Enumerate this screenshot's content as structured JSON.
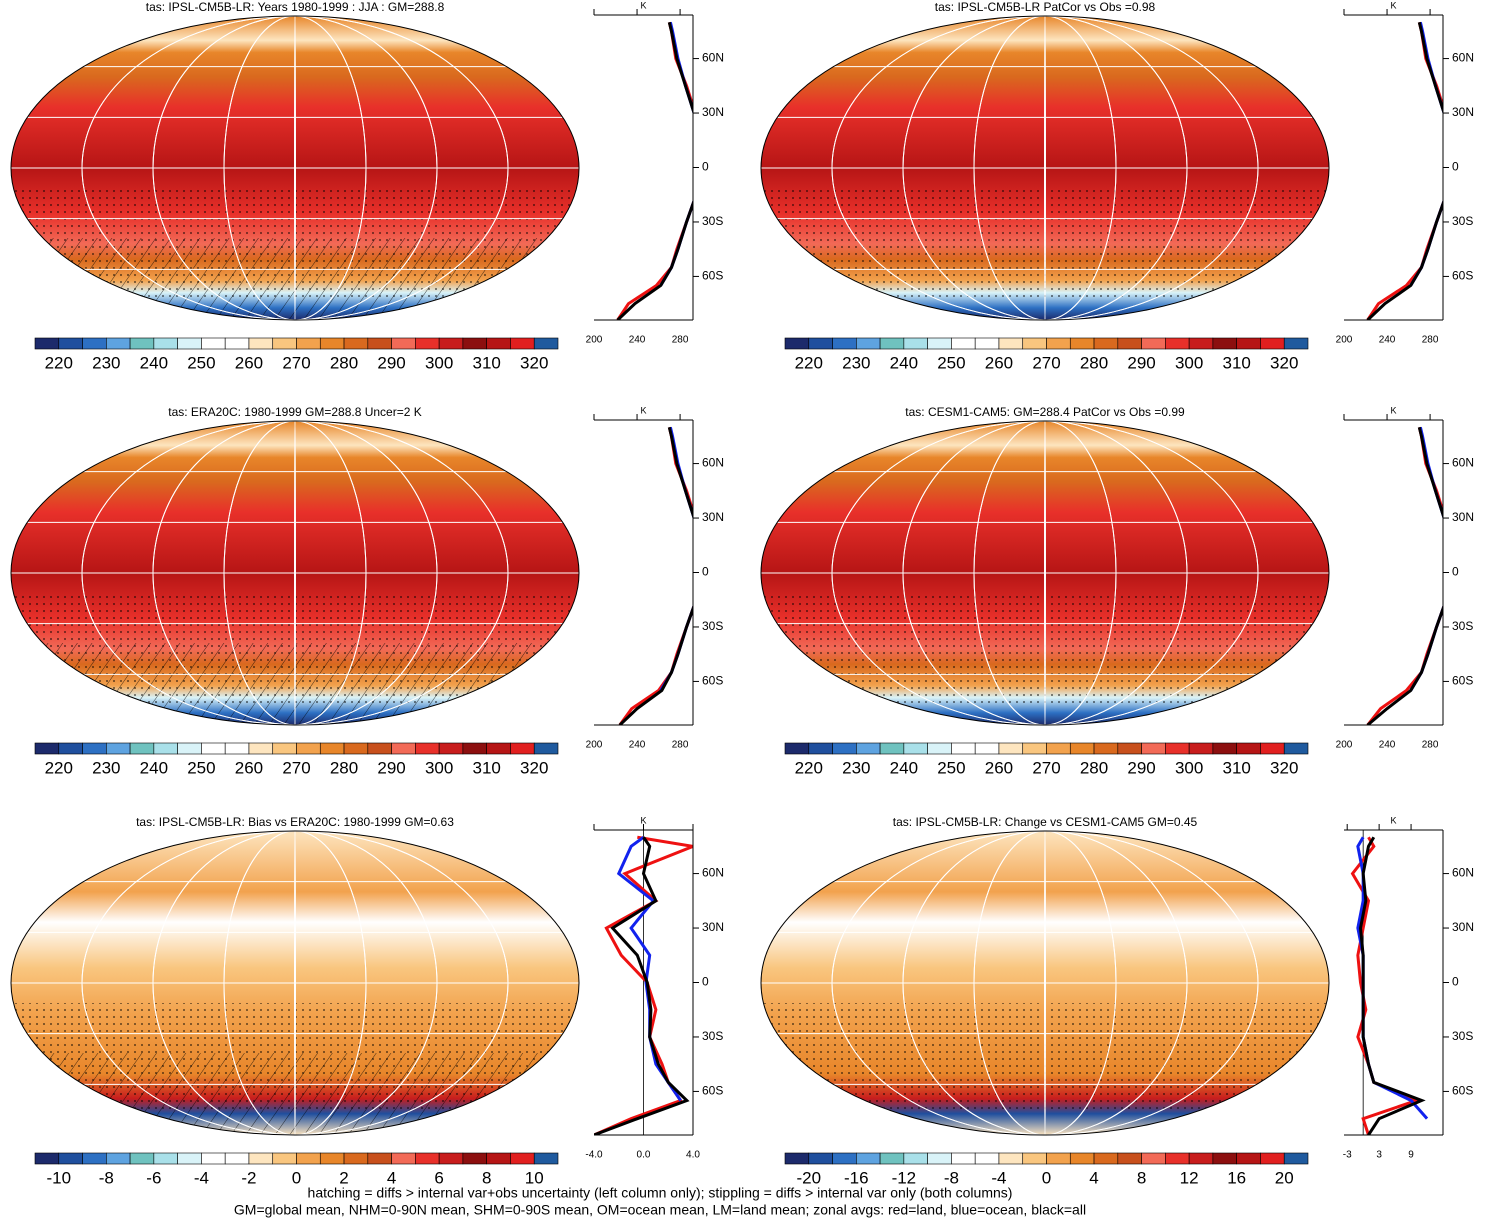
{
  "chart_data": [
    {
      "type": "map",
      "title": "tas: IPSL-CM5B-LR: Years 1980-1999 : JJA : GM=288.8",
      "colorbar": {
        "clim": [
          215,
          325
        ],
        "ticks": [
          220,
          230,
          240,
          250,
          260,
          270,
          280,
          290,
          300,
          310,
          320
        ]
      },
      "profile": {
        "type": "line",
        "units": "K",
        "xlim": [
          200,
          292
        ],
        "xticks": [
          200,
          240,
          280
        ],
        "ylim": [
          -84,
          84
        ],
        "yticks": [
          {
            "value": 60,
            "label": "60N"
          },
          {
            "value": 30,
            "label": "30N"
          },
          0,
          {
            "value": -30,
            "label": "30S"
          },
          {
            "value": -60,
            "label": "60S"
          }
        ],
        "y": [
          -84,
          -75,
          -65,
          -55,
          -45,
          -30,
          -15,
          0,
          15,
          30,
          45,
          60,
          75,
          80
        ],
        "series": [
          {
            "name": "land",
            "color": "#ee1111",
            "values": [
              222,
              232,
              258,
              272,
              277,
              286,
              295,
              299,
              297,
              294,
              286,
              276,
              272,
              270
            ]
          },
          {
            "name": "ocean",
            "color": "#1122ee",
            "values": [
              null,
              null,
              262,
              272,
              278,
              286,
              295,
              300,
              298,
              293,
              285,
              278,
              273,
              271
            ]
          },
          {
            "name": "all",
            "color": "#000000",
            "values": [
              222,
              238,
              262,
              272,
              278,
              286,
              295,
              300,
              298,
              293,
              285,
              277,
              272,
              270
            ]
          }
        ]
      }
    },
    {
      "type": "map",
      "title": "tas: IPSL-CM5B-LR PatCor vs Obs =0.98",
      "colorbar": {
        "clim": [
          215,
          325
        ],
        "ticks": [
          220,
          230,
          240,
          250,
          260,
          270,
          280,
          290,
          300,
          310,
          320
        ]
      },
      "profile": {
        "type": "line",
        "units": "K",
        "xlim": [
          200,
          292
        ],
        "xticks": [
          200,
          240,
          280
        ],
        "ylim": [
          -84,
          84
        ],
        "yticks": [
          {
            "value": 60,
            "label": "60N"
          },
          {
            "value": 30,
            "label": "30N"
          },
          0,
          {
            "value": -30,
            "label": "30S"
          },
          {
            "value": -60,
            "label": "60S"
          }
        ],
        "y": [
          -84,
          -75,
          -65,
          -55,
          -45,
          -30,
          -15,
          0,
          15,
          30,
          45,
          60,
          75,
          80
        ],
        "series": [
          {
            "name": "land",
            "color": "#ee1111",
            "values": [
              222,
              232,
              258,
              272,
              277,
              286,
              295,
              299,
              297,
              294,
              286,
              276,
              272,
              270
            ]
          },
          {
            "name": "ocean",
            "color": "#1122ee",
            "values": [
              null,
              null,
              262,
              272,
              278,
              286,
              295,
              300,
              298,
              293,
              285,
              278,
              273,
              271
            ]
          },
          {
            "name": "all",
            "color": "#000000",
            "values": [
              222,
              238,
              262,
              272,
              278,
              286,
              295,
              300,
              298,
              293,
              285,
              277,
              272,
              270
            ]
          }
        ]
      }
    },
    {
      "type": "map",
      "title": "tas: ERA20C: 1980-1999 GM=288.8 Uncer=2 K",
      "colorbar": {
        "clim": [
          215,
          325
        ],
        "ticks": [
          220,
          230,
          240,
          250,
          260,
          270,
          280,
          290,
          300,
          310,
          320
        ]
      },
      "profile": {
        "type": "line",
        "units": "K",
        "xlim": [
          200,
          292
        ],
        "xticks": [
          200,
          240,
          280
        ],
        "ylim": [
          -84,
          84
        ],
        "yticks": [
          {
            "value": 60,
            "label": "60N"
          },
          {
            "value": 30,
            "label": "30N"
          },
          0,
          {
            "value": -30,
            "label": "30S"
          },
          {
            "value": -60,
            "label": "60S"
          }
        ],
        "y": [
          -84,
          -75,
          -65,
          -55,
          -45,
          -30,
          -15,
          0,
          15,
          30,
          45,
          60,
          75,
          80
        ],
        "series": [
          {
            "name": "land",
            "color": "#ee1111",
            "values": [
              224,
              235,
              260,
              272,
              277,
              286,
              295,
              299,
              297,
              294,
              286,
              276,
              272,
              270
            ]
          },
          {
            "name": "ocean",
            "color": "#1122ee",
            "values": [
              null,
              null,
              262,
              272,
              278,
              286,
              295,
              300,
              298,
              293,
              285,
              278,
              273,
              271
            ]
          },
          {
            "name": "all",
            "color": "#000000",
            "values": [
              224,
              240,
              263,
              272,
              278,
              286,
              295,
              300,
              298,
              293,
              285,
              277,
              272,
              270
            ]
          }
        ]
      }
    },
    {
      "type": "map",
      "title": "tas: CESM1-CAM5: GM=288.4 PatCor vs Obs =0.99",
      "colorbar": {
        "clim": [
          215,
          325
        ],
        "ticks": [
          220,
          230,
          240,
          250,
          260,
          270,
          280,
          290,
          300,
          310,
          320
        ]
      },
      "profile": {
        "type": "line",
        "units": "K",
        "xlim": [
          200,
          292
        ],
        "xticks": [
          200,
          240,
          280
        ],
        "ylim": [
          -84,
          84
        ],
        "yticks": [
          {
            "value": 60,
            "label": "60N"
          },
          {
            "value": 30,
            "label": "30N"
          },
          0,
          {
            "value": -30,
            "label": "30S"
          },
          {
            "value": -60,
            "label": "60S"
          }
        ],
        "y": [
          -84,
          -75,
          -65,
          -55,
          -45,
          -30,
          -15,
          0,
          15,
          30,
          45,
          60,
          75,
          80
        ],
        "series": [
          {
            "name": "land",
            "color": "#ee1111",
            "values": [
              222,
              234,
              258,
              272,
              277,
              286,
              295,
              299,
              297,
              294,
              286,
              276,
              272,
              270
            ]
          },
          {
            "name": "ocean",
            "color": "#1122ee",
            "values": [
              null,
              null,
              262,
              272,
              278,
              286,
              295,
              300,
              298,
              293,
              285,
              278,
              273,
              271
            ]
          },
          {
            "name": "all",
            "color": "#000000",
            "values": [
              222,
              240,
              262,
              272,
              278,
              286,
              295,
              300,
              298,
              293,
              285,
              277,
              272,
              270
            ]
          }
        ]
      }
    },
    {
      "type": "map",
      "title": "tas: IPSL-CM5B-LR: Bias vs ERA20C: 1980-1999 GM=0.63",
      "colorbar": {
        "clim": [
          -11,
          11
        ],
        "ticks": [
          -10,
          -8,
          -6,
          -4,
          -2,
          0,
          2,
          4,
          6,
          8,
          10
        ]
      },
      "profile": {
        "type": "line",
        "units": "K",
        "xlim": [
          -4,
          4
        ],
        "xticks": [
          {
            "value": -4,
            "label": "-4.0"
          },
          {
            "value": 0,
            "label": "0.0"
          },
          {
            "value": 4,
            "label": "4.0"
          }
        ],
        "ylim": [
          -84,
          84
        ],
        "yticks": [
          {
            "value": 60,
            "label": "60N"
          },
          {
            "value": 30,
            "label": "30N"
          },
          0,
          {
            "value": -30,
            "label": "30S"
          },
          {
            "value": -60,
            "label": "60S"
          }
        ],
        "y": [
          -84,
          -75,
          -65,
          -55,
          -45,
          -30,
          -15,
          0,
          15,
          30,
          45,
          60,
          75,
          80
        ],
        "series": [
          {
            "name": "land",
            "color": "#ee1111",
            "values": [
              -4,
              -1,
              3,
              2,
              1.5,
              0.5,
              1,
              0.3,
              -1.8,
              -3,
              1,
              -1.5,
              4,
              -0.5
            ]
          },
          {
            "name": "ocean",
            "color": "#1122ee",
            "values": [
              null,
              null,
              3,
              2,
              1,
              0.5,
              0.5,
              0.2,
              0.5,
              -1,
              0.8,
              -2,
              -1,
              0
            ]
          },
          {
            "name": "all",
            "color": "#000000",
            "values": [
              -4,
              -0.5,
              3.5,
              2,
              1.2,
              0.5,
              0.6,
              0.3,
              -0.5,
              -2.5,
              1,
              0,
              0.5,
              0
            ]
          }
        ]
      }
    },
    {
      "type": "map",
      "title": "tas: IPSL-CM5B-LR: Change vs CESM1-CAM5 GM=0.45",
      "colorbar": {
        "clim": [
          -22,
          22
        ],
        "ticks": [
          -20,
          -16,
          -12,
          -8,
          -4,
          0,
          4,
          8,
          12,
          16,
          20
        ]
      },
      "profile": {
        "type": "line",
        "units": "K",
        "xlim": [
          -3.6,
          15
        ],
        "xticks": [
          -3,
          3,
          9
        ],
        "ylim": [
          -84,
          84
        ],
        "yticks": [
          {
            "value": 60,
            "label": "60N"
          },
          {
            "value": 30,
            "label": "30N"
          },
          0,
          {
            "value": -30,
            "label": "30S"
          },
          {
            "value": -60,
            "label": "60S"
          }
        ],
        "y": [
          -84,
          -75,
          -65,
          -55,
          -45,
          -30,
          -15,
          0,
          15,
          30,
          45,
          60,
          75,
          80
        ],
        "series": [
          {
            "name": "land",
            "color": "#ee1111",
            "values": [
              1,
              0,
              10,
              2,
              1,
              -1,
              0.5,
              -0.5,
              -1,
              0,
              1,
              -2,
              2,
              1
            ]
          },
          {
            "name": "ocean",
            "color": "#1122ee",
            "values": [
              null,
              12,
              9,
              2,
              1,
              0,
              0,
              0,
              0,
              -1,
              0,
              0,
              -1,
              0
            ]
          },
          {
            "name": "all",
            "color": "#000000",
            "values": [
              1,
              3,
              11,
              2,
              1,
              0,
              0,
              0,
              0,
              -0.5,
              0.5,
              0,
              1,
              2
            ]
          }
        ]
      }
    }
  ],
  "palette": [
    "#1c2a6b",
    "#1f4f9e",
    "#2d70c3",
    "#5ea3e0",
    "#6fc2bf",
    "#a9e0e9",
    "#d9f3f8",
    "#ffffff",
    "#ffffff",
    "#fde5bf",
    "#f9c67f",
    "#f2a24d",
    "#e8862a",
    "#d9691e",
    "#c8501c",
    "#f26a57",
    "#e8302a",
    "#c81d1d",
    "#8c0f0f",
    "#b61515",
    "#e11f1f",
    "#1f5a9e"
  ],
  "notes": [
    "hatching = diffs > internal var+obs uncertainty (left column only); stippling = diffs > internal var only (both columns)",
    "GM=global mean, NHM=0-90N mean, SHM=0-90S mean, OM=ocean mean, LM=land mean; zonal avgs: red=land, blue=ocean, black=all"
  ]
}
